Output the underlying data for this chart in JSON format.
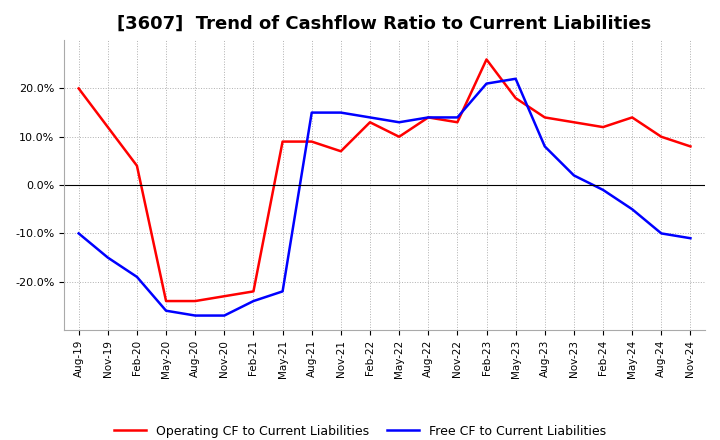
{
  "title": "[3607]  Trend of Cashflow Ratio to Current Liabilities",
  "x_labels": [
    "Aug-19",
    "Nov-19",
    "Feb-20",
    "May-20",
    "Aug-20",
    "Nov-20",
    "Feb-21",
    "May-21",
    "Aug-21",
    "Nov-21",
    "Feb-22",
    "May-22",
    "Aug-22",
    "Nov-22",
    "Feb-23",
    "May-23",
    "Aug-23",
    "Nov-23",
    "Feb-24",
    "May-24",
    "Aug-24",
    "Nov-24"
  ],
  "operating_cf": [
    0.2,
    0.12,
    0.04,
    -0.24,
    -0.24,
    -0.23,
    -0.22,
    0.09,
    0.09,
    0.07,
    0.13,
    0.1,
    0.14,
    0.13,
    0.26,
    0.18,
    0.14,
    0.13,
    0.12,
    0.14,
    0.1,
    0.08
  ],
  "free_cf": [
    -0.1,
    -0.15,
    -0.19,
    -0.26,
    -0.27,
    -0.27,
    -0.24,
    -0.22,
    0.15,
    0.15,
    0.14,
    0.13,
    0.14,
    0.14,
    0.21,
    0.22,
    0.08,
    0.02,
    -0.01,
    -0.05,
    -0.1,
    -0.11
  ],
  "operating_color": "#ff0000",
  "free_color": "#0000ff",
  "ylim": [
    -0.3,
    0.3
  ],
  "yticks": [
    -0.2,
    -0.1,
    0.0,
    0.1,
    0.2
  ],
  "background_color": "#ffffff",
  "grid_color": "#b0b0b0",
  "title_fontsize": 13,
  "legend_labels": [
    "Operating CF to Current Liabilities",
    "Free CF to Current Liabilities"
  ]
}
